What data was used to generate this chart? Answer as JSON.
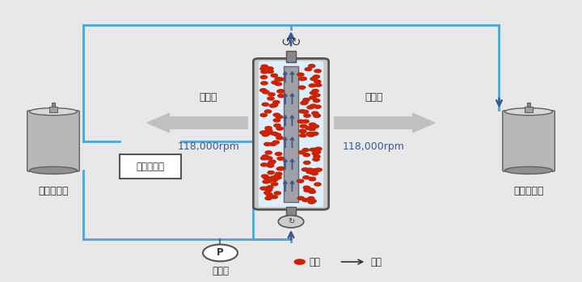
{
  "bg_color": "#e8e8e8",
  "rpm_text": "118,000rpm",
  "centrifugal_text": "遠心力",
  "send_tank_label": "送液タンク",
  "recv_tank_label": "回収タンク",
  "pump_label": "送液ポンプ",
  "pressure_label": "圧力計",
  "particle_label": "粒子",
  "flow_label": "流路",
  "blue_line_color": "#4da6d6",
  "arrow_color": "#3a5a8c",
  "centrifugal_arrow_color": "#c0c0c0",
  "rpm_color": "#3a5a8c",
  "particle_color": "#cc2200",
  "text_color": "#333333"
}
